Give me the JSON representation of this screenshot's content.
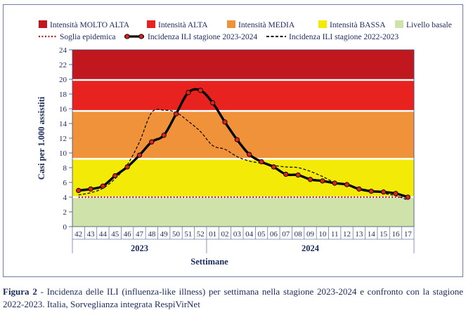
{
  "caption": {
    "label": "Figura 2",
    "text": " - Incidenza delle ILI (influenza-like illness) per settimana nella stagione 2023-2024 e confronto con la stagione 2022-2023. Italia, Sorveglianza integrata RespiVirNet"
  },
  "chart_data": {
    "type": "line",
    "ylabel": "Casi per 1.000 assistiti",
    "xlabel": "Settimane",
    "ylim": [
      0,
      24
    ],
    "yticks": [
      0,
      2,
      4,
      6,
      8,
      10,
      12,
      14,
      16,
      18,
      20,
      22,
      24
    ],
    "categories": [
      "42",
      "43",
      "44",
      "45",
      "46",
      "47",
      "48",
      "49",
      "50",
      "51",
      "52",
      "01",
      "02",
      "03",
      "04",
      "05",
      "06",
      "07",
      "08",
      "09",
      "10",
      "11",
      "12",
      "13",
      "14",
      "15",
      "16",
      "17"
    ],
    "year_labels": [
      {
        "label": "2023",
        "from": "42",
        "to": "52"
      },
      {
        "label": "2024",
        "from": "01",
        "to": "17"
      }
    ],
    "bands": [
      {
        "name": "Intensità MOLTO ALTA",
        "from": 19.9,
        "to": 24,
        "color": "#c0181e"
      },
      {
        "name": "Intensità ALTA",
        "from": 15.7,
        "to": 19.9,
        "color": "#e8231f"
      },
      {
        "name": "Intensità MEDIA",
        "from": 9.2,
        "to": 15.7,
        "color": "#f0923a"
      },
      {
        "name": "Intensità BASSA",
        "from": 4.0,
        "to": 9.2,
        "color": "#f3ea08"
      },
      {
        "name": "Livello basale",
        "from": 0,
        "to": 4.0,
        "color": "#cfe2aa"
      }
    ],
    "series": [
      {
        "name": "Soglia epidemica",
        "style": "dotted",
        "color": "#c0181e",
        "values": [
          4.0,
          4.0,
          4.0,
          4.0,
          4.0,
          4.0,
          4.0,
          4.0,
          4.0,
          4.0,
          4.0,
          4.0,
          4.0,
          4.0,
          4.0,
          4.0,
          4.0,
          4.0,
          4.0,
          4.0,
          4.0,
          4.0,
          4.0,
          4.0,
          4.0,
          4.0,
          4.0,
          4.0
        ]
      },
      {
        "name": "Incidenza ILI stagione 2023-2024",
        "style": "bold-markers",
        "color": "#000000",
        "marker_color": "#d9261c",
        "values": [
          4.9,
          5.1,
          5.5,
          6.9,
          8.1,
          9.7,
          11.5,
          12.4,
          15.3,
          18.2,
          18.5,
          16.8,
          14.2,
          11.8,
          9.8,
          8.8,
          8.1,
          7.1,
          7.0,
          6.4,
          6.2,
          5.9,
          5.7,
          5.1,
          4.8,
          4.7,
          4.5,
          4.0
        ]
      },
      {
        "name": "Incidenza ILI stagione 2022-2023",
        "style": "dashed",
        "color": "#000000",
        "values": [
          4.3,
          4.6,
          5.2,
          6.5,
          8.4,
          11.5,
          15.5,
          15.8,
          15.5,
          14.3,
          12.9,
          11.0,
          10.5,
          9.5,
          8.9,
          8.6,
          8.3,
          8.1,
          8.0,
          7.5,
          6.8,
          6.0,
          5.6,
          5.2,
          4.9,
          4.5,
          4.2,
          3.6
        ]
      }
    ],
    "legend_placement": "top",
    "grid": false
  }
}
